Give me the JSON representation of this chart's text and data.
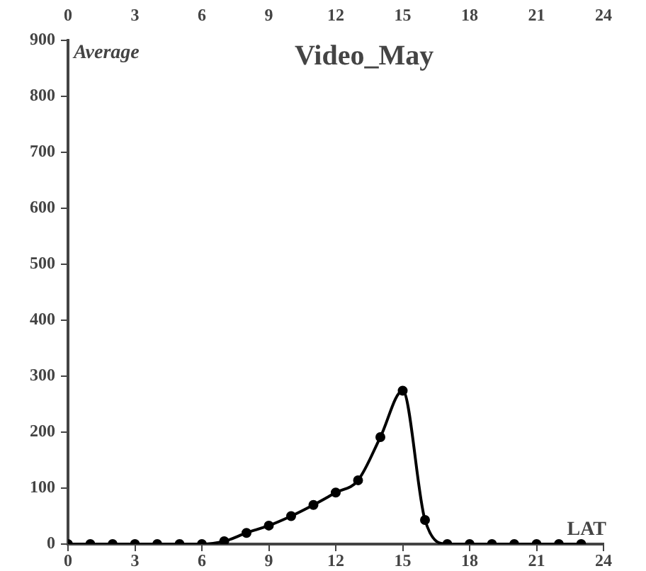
{
  "chart_data": {
    "type": "line",
    "title": "Video_May",
    "xlabel": "LAT",
    "ylabel": "Average",
    "x": [
      0,
      1,
      2,
      3,
      4,
      5,
      6,
      7,
      8,
      9,
      10,
      11,
      12,
      13,
      14,
      15,
      16,
      17,
      18,
      19,
      20,
      21,
      22,
      23
    ],
    "series": [
      {
        "color": "#000000",
        "values": [
          0,
          0,
          0,
          0,
          0,
          0,
          0,
          5,
          20,
          33,
          50,
          70,
          92,
          114,
          191,
          274,
          43,
          0,
          0,
          0,
          0,
          0,
          0,
          0
        ]
      }
    ],
    "xlim": [
      0,
      24
    ],
    "xticks": [
      0,
      3,
      6,
      9,
      12,
      15,
      18,
      21,
      24
    ],
    "x2lim": [
      0,
      24
    ],
    "x2ticks": [
      0,
      3,
      6,
      9,
      12,
      15,
      18,
      21,
      24
    ],
    "ylim": [
      0,
      900
    ],
    "yticks": [
      0,
      100,
      200,
      300,
      400,
      500,
      600,
      700,
      800,
      900
    ],
    "grid": false,
    "legend": false,
    "marker": "circle",
    "line_style": "solid"
  }
}
